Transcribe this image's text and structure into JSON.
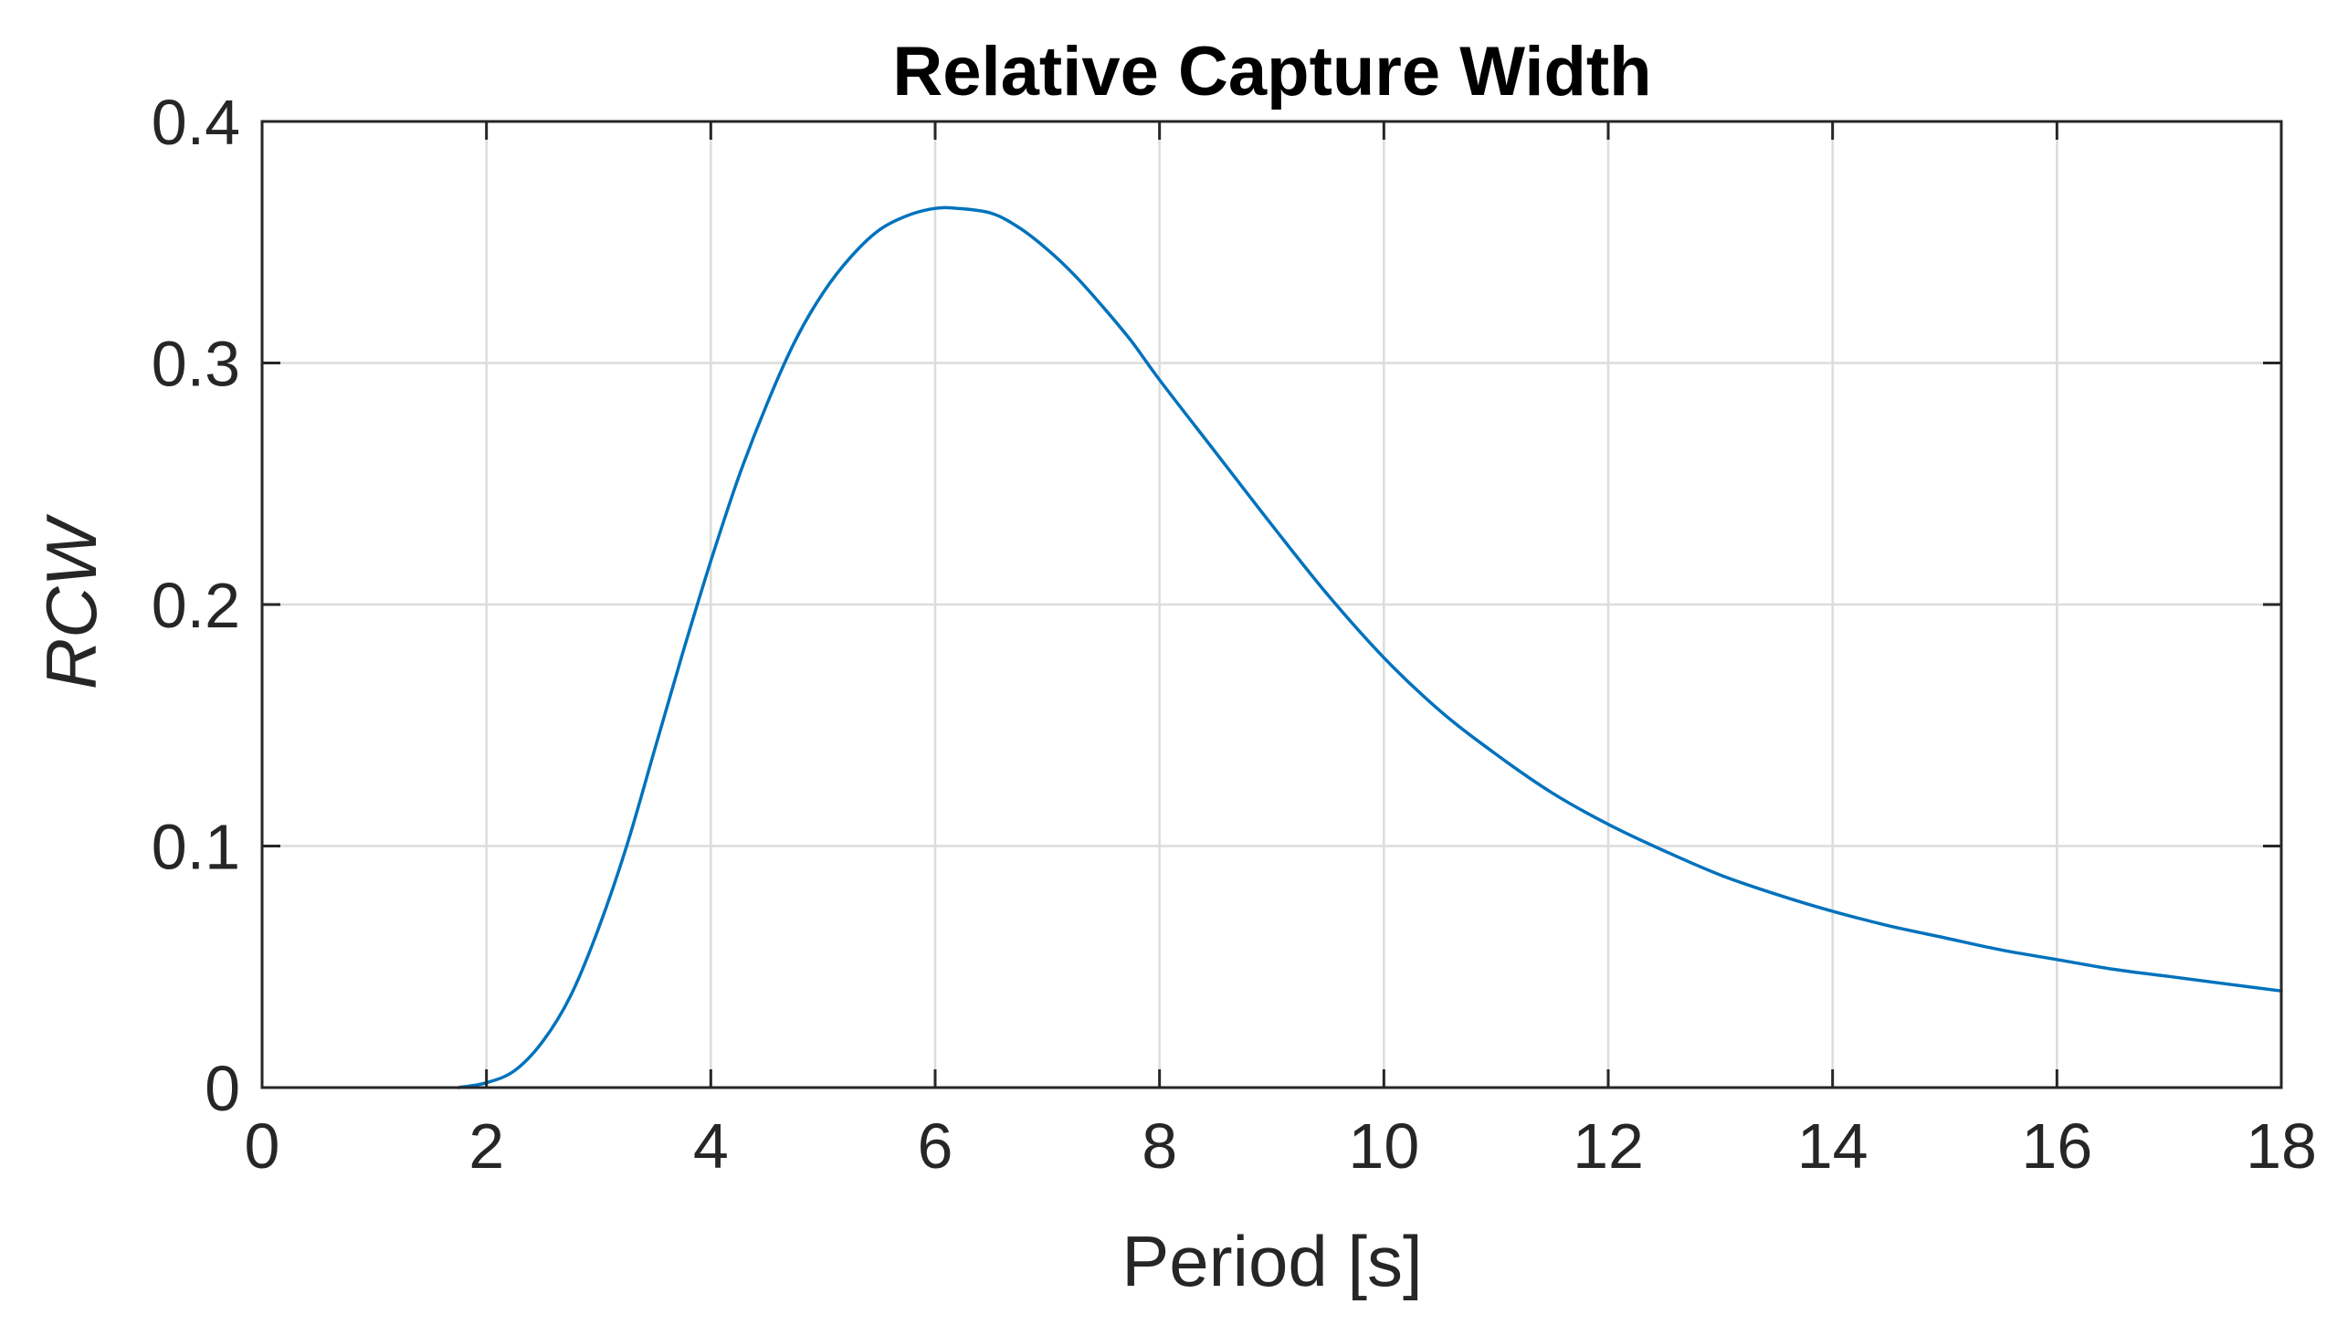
{
  "chart_data": {
    "type": "line",
    "title": "Relative Capture Width",
    "xlabel": "Period [s]",
    "ylabel": "RCW",
    "xlim": [
      0,
      18
    ],
    "ylim": [
      0,
      0.4
    ],
    "xticks": [
      0,
      2,
      4,
      6,
      8,
      10,
      12,
      14,
      16,
      18
    ],
    "xtick_labels": [
      "0",
      "2",
      "4",
      "6",
      "8",
      "10",
      "12",
      "14",
      "16",
      "18"
    ],
    "yticks": [
      0,
      0.1,
      0.2,
      0.3,
      0.4
    ],
    "ytick_labels": [
      "0",
      "0.1",
      "0.2",
      "0.3",
      "0.4"
    ],
    "grid": true,
    "series": [
      {
        "color": "#0072BD",
        "x": [
          1.75,
          2.0,
          2.25,
          2.5,
          2.75,
          3.0,
          3.25,
          3.5,
          3.75,
          4.0,
          4.25,
          4.5,
          4.75,
          5.0,
          5.25,
          5.5,
          5.75,
          6.0,
          6.2,
          6.5,
          6.75,
          7.0,
          7.25,
          7.5,
          7.75,
          8.0,
          8.5,
          9.0,
          9.5,
          10.0,
          10.5,
          11.0,
          11.5,
          12.0,
          12.5,
          13.0,
          13.5,
          14.0,
          14.5,
          15.0,
          15.5,
          16.0,
          16.5,
          17.0,
          17.5,
          18.0
        ],
        "y": [
          0.0,
          0.002,
          0.007,
          0.019,
          0.038,
          0.066,
          0.1,
          0.14,
          0.18,
          0.218,
          0.253,
          0.283,
          0.309,
          0.329,
          0.344,
          0.355,
          0.361,
          0.364,
          0.364,
          0.362,
          0.356,
          0.347,
          0.336,
          0.323,
          0.309,
          0.293,
          0.263,
          0.233,
          0.204,
          0.178,
          0.156,
          0.138,
          0.122,
          0.109,
          0.098,
          0.088,
          0.08,
          0.073,
          0.067,
          0.062,
          0.057,
          0.053,
          0.049,
          0.046,
          0.043,
          0.04
        ]
      }
    ]
  }
}
